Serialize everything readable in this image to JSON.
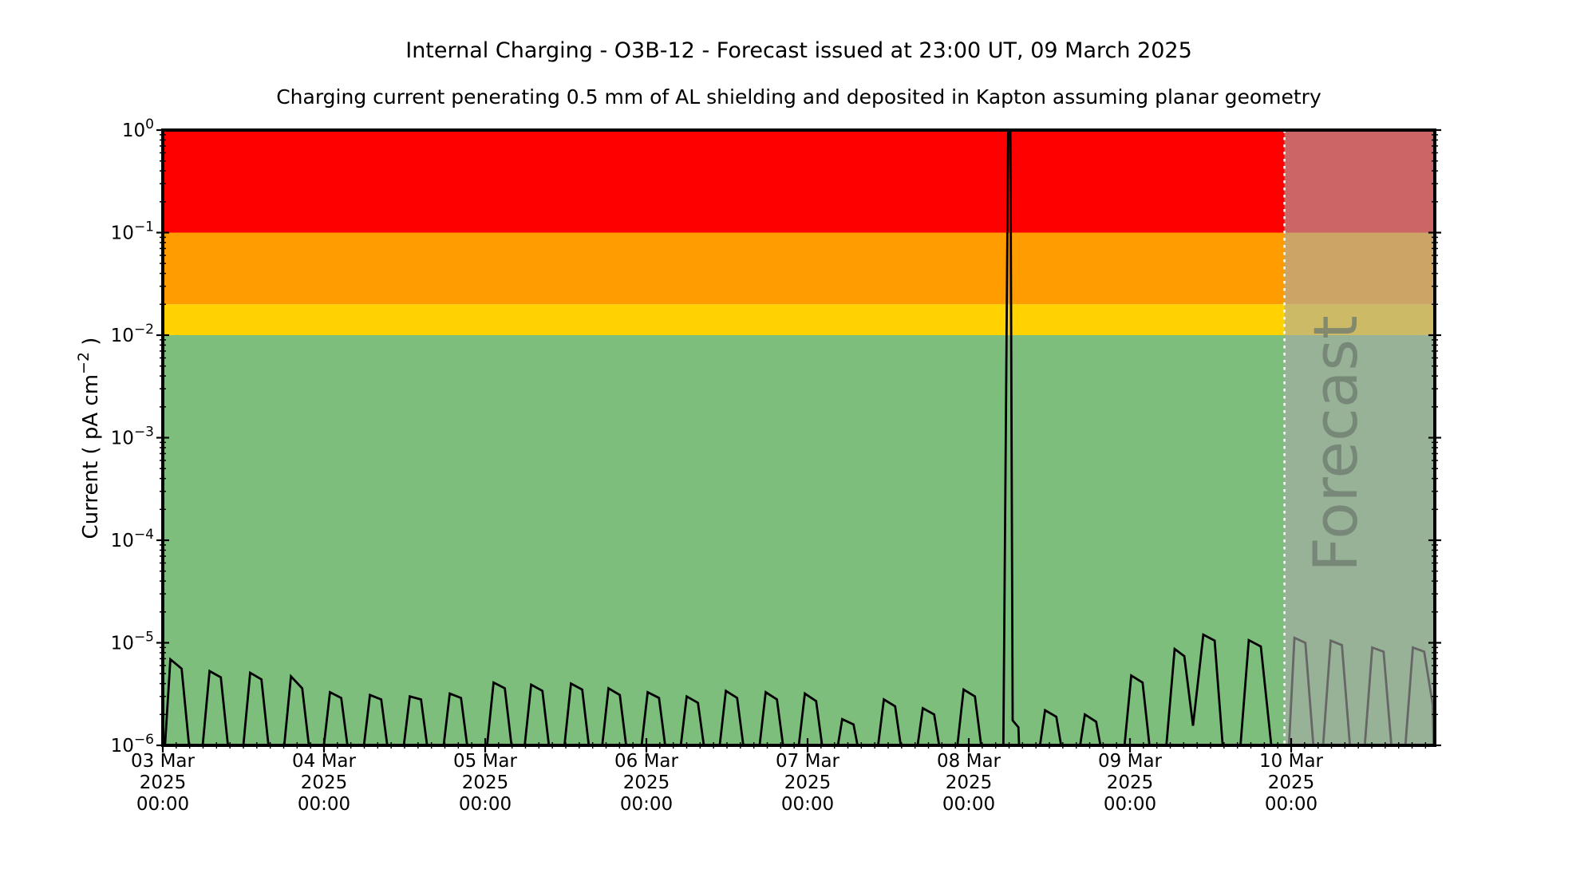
{
  "figure": {
    "title": "Internal Charging - O3B-12 - Forecast issued at 23:00 UT, 09 March 2025",
    "subtitle": "Charging current penerating 0.5 mm of AL shielding and deposited in Kapton assuming planar geometry",
    "background_color": "#ffffff"
  },
  "chart_data": {
    "type": "line",
    "title": "Internal Charging - O3B-12 - Forecast issued at 23:00 UT, 09 March 2025",
    "subtitle": "Charging current penerating 0.5 mm of AL shielding and deposited in Kapton assuming planar geometry",
    "ylabel": "Current ( pA cm⁻² )",
    "ylabel_parts": {
      "prefix": "Current ( pA cm",
      "sup": "−2",
      "suffix": " )"
    },
    "y_axis": {
      "scale": "log",
      "min": 1e-06,
      "max": 1,
      "major_tick_exponents": [
        0,
        -1,
        -2,
        -3,
        -4,
        -5,
        -6
      ],
      "tick_label_base": "10",
      "tick_label_exponents": [
        "0",
        "−1",
        "−2",
        "−3",
        "−4",
        "−5",
        "−6"
      ],
      "minor_ticks": "log 2-9 per decade",
      "grid": false
    },
    "x_axis": {
      "start": "03 Mar 2025 00:00",
      "span_days": 7.891,
      "major_tick_every_days": 1,
      "minor_tick_hours": 2,
      "tick_labels": [
        [
          "03 Mar",
          "2025",
          "00:00"
        ],
        [
          "04 Mar",
          "2025",
          "00:00"
        ],
        [
          "05 Mar",
          "2025",
          "00:00"
        ],
        [
          "06 Mar",
          "2025",
          "00:00"
        ],
        [
          "07 Mar",
          "2025",
          "00:00"
        ],
        [
          "08 Mar",
          "2025",
          "00:00"
        ],
        [
          "09 Mar",
          "2025",
          "00:00"
        ],
        [
          "10 Mar",
          "2025",
          "00:00"
        ]
      ],
      "grid": false
    },
    "threshold_bands": [
      {
        "name": "red-alert",
        "from": 0.1,
        "to": 1.0,
        "color": "#ff0000"
      },
      {
        "name": "orange-alert",
        "from": 0.02,
        "to": 0.1,
        "color": "#ff9d00"
      },
      {
        "name": "yellow-alert",
        "from": 0.01,
        "to": 0.02,
        "color": "#ffd200"
      },
      {
        "name": "green-safe",
        "from": 1e-06,
        "to": 0.01,
        "color": "#7dbe7c"
      }
    ],
    "forecast": {
      "label": "Forecast",
      "start_days_from_origin": 6.9583,
      "start_time": "23:00 UT 09 Mar 2025",
      "overlay_color": "rgba(170,170,170,0.6)",
      "divider_color": "#ffffff",
      "divider_style": "dotted",
      "watermark_color": "#6f7d70"
    },
    "series": [
      {
        "name": "charging-current",
        "color": "#000000",
        "units": "pA cm^-2",
        "x_units": "days since 03 Mar 2025 00:00",
        "points": [
          [
            0.0,
            4.5e-07
          ],
          [
            0.047,
            6.9e-06
          ],
          [
            0.117,
            5.6e-06
          ],
          [
            0.184,
            4.5e-07
          ],
          [
            0.227,
            4.5e-07
          ],
          [
            0.29,
            5.3e-06
          ],
          [
            0.36,
            4.6e-06
          ],
          [
            0.427,
            4.5e-07
          ],
          [
            0.479,
            4.5e-07
          ],
          [
            0.542,
            5.1e-06
          ],
          [
            0.612,
            4.4e-06
          ],
          [
            0.679,
            4.5e-07
          ],
          [
            0.732,
            4.5e-07
          ],
          [
            0.795,
            4.7e-06
          ],
          [
            0.865,
            3.6e-06
          ],
          [
            0.932,
            4.5e-07
          ],
          [
            0.974,
            4.5e-07
          ],
          [
            1.037,
            3.3e-06
          ],
          [
            1.107,
            2.9e-06
          ],
          [
            1.174,
            4.5e-07
          ],
          [
            1.222,
            4.5e-07
          ],
          [
            1.285,
            3.1e-06
          ],
          [
            1.355,
            2.8e-06
          ],
          [
            1.422,
            4.5e-07
          ],
          [
            1.469,
            4.5e-07
          ],
          [
            1.532,
            3e-06
          ],
          [
            1.602,
            2.8e-06
          ],
          [
            1.669,
            4.5e-07
          ],
          [
            1.717,
            4.5e-07
          ],
          [
            1.78,
            3.2e-06
          ],
          [
            1.85,
            2.9e-06
          ],
          [
            1.917,
            4.5e-07
          ],
          [
            1.989,
            4.5e-07
          ],
          [
            2.052,
            4.1e-06
          ],
          [
            2.122,
            3.6e-06
          ],
          [
            2.189,
            4.5e-07
          ],
          [
            2.222,
            4.5e-07
          ],
          [
            2.285,
            3.9e-06
          ],
          [
            2.355,
            3.4e-06
          ],
          [
            2.422,
            4.5e-07
          ],
          [
            2.469,
            4.5e-07
          ],
          [
            2.532,
            4e-06
          ],
          [
            2.602,
            3.5e-06
          ],
          [
            2.669,
            4.5e-07
          ],
          [
            2.702,
            4.5e-07
          ],
          [
            2.765,
            3.6e-06
          ],
          [
            2.835,
            3.1e-06
          ],
          [
            2.902,
            4.5e-07
          ],
          [
            2.945,
            4.5e-07
          ],
          [
            3.008,
            3.3e-06
          ],
          [
            3.078,
            2.9e-06
          ],
          [
            3.145,
            4.5e-07
          ],
          [
            3.187,
            4.5e-07
          ],
          [
            3.25,
            3e-06
          ],
          [
            3.32,
            2.6e-06
          ],
          [
            3.387,
            4.5e-07
          ],
          [
            3.43,
            4.5e-07
          ],
          [
            3.493,
            3.4e-06
          ],
          [
            3.563,
            2.9e-06
          ],
          [
            3.63,
            4.5e-07
          ],
          [
            3.677,
            4.5e-07
          ],
          [
            3.74,
            3.3e-06
          ],
          [
            3.81,
            2.8e-06
          ],
          [
            3.877,
            4.5e-07
          ],
          [
            3.92,
            4.5e-07
          ],
          [
            3.983,
            3.2e-06
          ],
          [
            4.053,
            2.7e-06
          ],
          [
            4.12,
            4.5e-07
          ],
          [
            4.152,
            4.5e-07
          ],
          [
            4.215,
            1.8e-06
          ],
          [
            4.285,
            1.6e-06
          ],
          [
            4.352,
            4.5e-07
          ],
          [
            4.41,
            4.5e-07
          ],
          [
            4.473,
            2.8e-06
          ],
          [
            4.543,
            2.4e-06
          ],
          [
            4.61,
            4.5e-07
          ],
          [
            4.652,
            4.5e-07
          ],
          [
            4.715,
            2.3e-06
          ],
          [
            4.785,
            2e-06
          ],
          [
            4.852,
            4.5e-07
          ],
          [
            4.905,
            4.5e-07
          ],
          [
            4.968,
            3.5e-06
          ],
          [
            5.038,
            3e-06
          ],
          [
            5.105,
            4.5e-07
          ],
          [
            5.213,
            4.5e-07
          ],
          [
            5.245,
            1.3
          ],
          [
            5.258,
            1.3
          ],
          [
            5.272,
            1.75e-06
          ],
          [
            5.308,
            1.5e-06
          ],
          [
            5.32,
            4.5e-07
          ],
          [
            5.41,
            4.5e-07
          ],
          [
            5.473,
            2.2e-06
          ],
          [
            5.543,
            1.9e-06
          ],
          [
            5.61,
            4.5e-07
          ],
          [
            5.657,
            4.5e-07
          ],
          [
            5.72,
            2e-06
          ],
          [
            5.79,
            1.7e-06
          ],
          [
            5.857,
            4.5e-07
          ],
          [
            5.945,
            4.5e-07
          ],
          [
            6.008,
            4.8e-06
          ],
          [
            6.078,
            4.1e-06
          ],
          [
            6.145,
            4.5e-07
          ],
          [
            6.207,
            4.5e-07
          ],
          [
            6.277,
            8.7e-06
          ],
          [
            6.337,
            7.4e-06
          ],
          [
            6.391,
            1.55e-06
          ],
          [
            6.455,
            1.2e-05
          ],
          [
            6.525,
            1.05e-05
          ],
          [
            6.592,
            4.5e-07
          ],
          [
            6.668,
            4.5e-07
          ],
          [
            6.737,
            1.06e-05
          ],
          [
            6.812,
            9.2e-06
          ],
          [
            6.9,
            4.5e-07
          ],
          [
            6.975,
            4.5e-07
          ],
          [
            7.02,
            1.12e-05
          ],
          [
            7.088,
            1e-05
          ],
          [
            7.155,
            4.5e-07
          ],
          [
            7.182,
            4.5e-07
          ],
          [
            7.245,
            1.05e-05
          ],
          [
            7.315,
            9.5e-06
          ],
          [
            7.382,
            4.5e-07
          ],
          [
            7.44,
            4.5e-07
          ],
          [
            7.503,
            9e-06
          ],
          [
            7.573,
            8.2e-06
          ],
          [
            7.64,
            4.5e-07
          ],
          [
            7.692,
            4.5e-07
          ],
          [
            7.755,
            9e-06
          ],
          [
            7.825,
            8.2e-06
          ],
          [
            7.878,
            2.5e-06
          ],
          [
            7.888,
            4.5e-07
          ]
        ]
      }
    ]
  }
}
